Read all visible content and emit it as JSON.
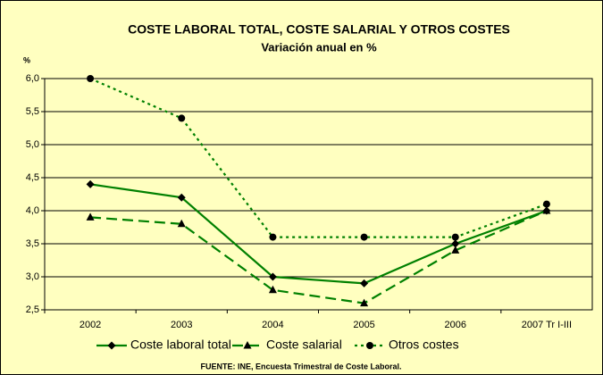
{
  "chart_data": {
    "type": "line",
    "title": "COSTE LABORAL TOTAL, COSTE SALARIAL Y OTROS COSTES",
    "subtitle": "Variación anual en %",
    "y_label": "%",
    "source": "FUENTE: INE, Encuesta Trimestral de Coste Laboral.",
    "categories": [
      "2002",
      "2003",
      "2004",
      "2005",
      "2006",
      "2007 Tr I-III"
    ],
    "series": [
      {
        "name": "Coste laboral total",
        "color": "#008000",
        "marker_color": "#000000",
        "dash": "solid",
        "marker": "diamond",
        "values": [
          4.4,
          4.2,
          3.0,
          2.9,
          3.5,
          4.0
        ]
      },
      {
        "name": "Coste salarial",
        "color": "#008000",
        "marker_color": "#000000",
        "dash": "dashed",
        "marker": "triangle",
        "values": [
          3.9,
          3.8,
          2.8,
          2.6,
          3.4,
          4.0
        ]
      },
      {
        "name": "Otros costes",
        "color": "#008000",
        "marker_color": "#000000",
        "dash": "dotted",
        "marker": "circle",
        "values": [
          6.0,
          5.4,
          3.6,
          3.6,
          3.6,
          4.1
        ]
      }
    ],
    "ylim": [
      2.5,
      6.0
    ],
    "yticks": [
      {
        "value": 2.5,
        "label": "2,5"
      },
      {
        "value": 3.0,
        "label": "3,0"
      },
      {
        "value": 3.5,
        "label": "3,5"
      },
      {
        "value": 4.0,
        "label": "4,0"
      },
      {
        "value": 4.5,
        "label": "4,5"
      },
      {
        "value": 5.0,
        "label": "5,0"
      },
      {
        "value": 5.5,
        "label": "5,5"
      },
      {
        "value": 6.0,
        "label": "6,0"
      }
    ],
    "grid": true,
    "legend": "bottom",
    "background": "#FFFFC0"
  }
}
